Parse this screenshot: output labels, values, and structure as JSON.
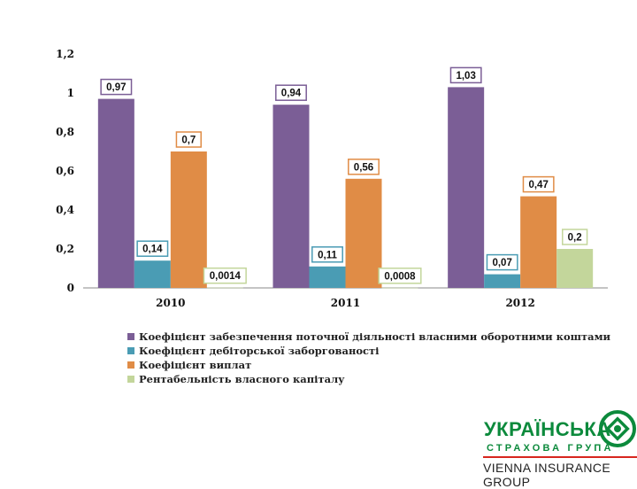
{
  "chart_data": {
    "type": "bar",
    "categories": [
      "2010",
      "2011",
      "2012"
    ],
    "ylim": [
      0,
      1.2
    ],
    "yticks": [
      "0",
      "0,2",
      "0,4",
      "0,6",
      "0,8",
      "1",
      "1,2"
    ],
    "series": [
      {
        "name": "Коефіцієнт забезпечення поточної діяльності власними оборотними коштами",
        "color": "#7b5e96",
        "values": [
          0.97,
          0.94,
          1.03
        ],
        "labels": [
          "0,97",
          "0,94",
          "1,03"
        ]
      },
      {
        "name": "Коефіцієнт дебіторської заборгованості",
        "color": "#4a9cb4",
        "values": [
          0.14,
          0.11,
          0.07
        ],
        "labels": [
          "0,14",
          "0,11",
          "0,07"
        ]
      },
      {
        "name": "Коефіцієнт виплат",
        "color": "#e08c46",
        "values": [
          0.7,
          0.56,
          0.47
        ],
        "labels": [
          "0,7",
          "0,56",
          "0,47"
        ]
      },
      {
        "name": "Рентабельність власного капіталу",
        "color": "#c3d69b",
        "values": [
          0.0014,
          0.0008,
          0.2
        ],
        "labels": [
          "0,0014",
          "0,0008",
          "0,2"
        ]
      }
    ],
    "legend_position": "bottom",
    "grid": false
  },
  "logo": {
    "line1": "УКРАЇНСЬКА",
    "line2": "СТРАХОВА ГРУПА",
    "line3": "VIENNA INSURANCE GROUP"
  }
}
